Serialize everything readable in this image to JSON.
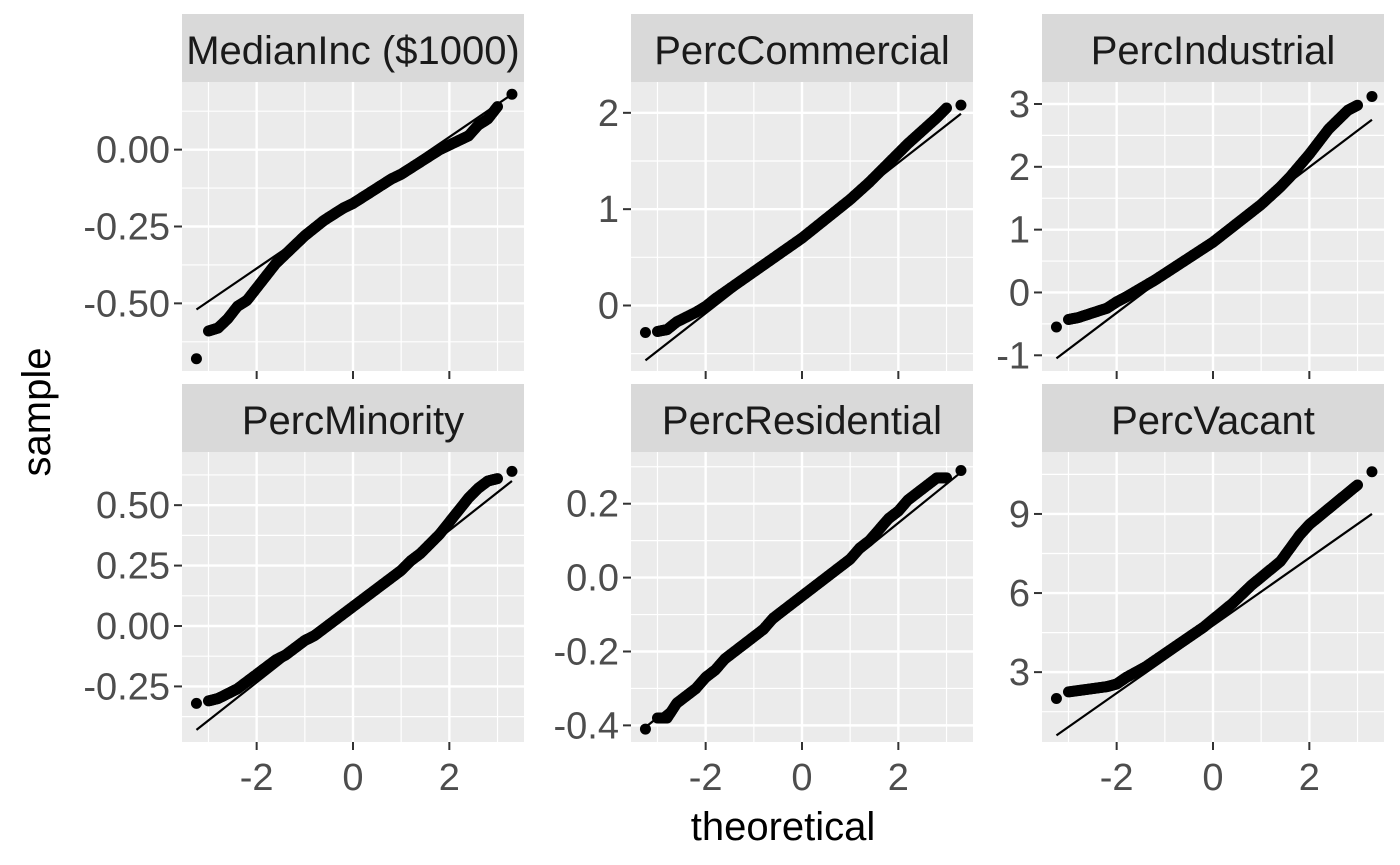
{
  "figure": {
    "xlabel": "theoretical",
    "ylabel": "sample"
  },
  "colors": {
    "panel_bg": "#ebebeb",
    "strip_bg": "#d9d9d9",
    "grid": "#ffffff",
    "points": "#000000",
    "line": "#000000",
    "tick_text": "#4d4d4d"
  },
  "chart_data": [
    {
      "type": "scatter",
      "title": "MedianInc ($1000)",
      "xlim": [
        -3.55,
        3.55
      ],
      "ylim": [
        -0.72,
        0.22
      ],
      "x_ticks": [
        -2,
        0,
        2
      ],
      "x_tick_labels": [
        "-2",
        "0",
        "2"
      ],
      "y_ticks": [
        -0.5,
        -0.25,
        0
      ],
      "y_tick_labels": [
        "-0.50",
        "-0.25",
        "0.00"
      ],
      "show_x_tick_labels": false,
      "qq_line": {
        "x": [
          -3.25,
          3.3
        ],
        "y": [
          -0.52,
          0.18
        ]
      },
      "series": [
        {
          "x": [
            -3.25,
            -3.0,
            -2.8,
            -2.6,
            -2.4,
            -2.2,
            -2.0,
            -1.8,
            -1.6,
            -1.4,
            -1.2,
            -1.0,
            -0.8,
            -0.6,
            -0.4,
            -0.2,
            0.0,
            0.2,
            0.4,
            0.6,
            0.8,
            1.0,
            1.2,
            1.4,
            1.6,
            1.8,
            2.0,
            2.2,
            2.4,
            2.6,
            2.8,
            3.0,
            3.3
          ],
          "y": [
            -0.68,
            -0.59,
            -0.58,
            -0.55,
            -0.51,
            -0.49,
            -0.45,
            -0.41,
            -0.37,
            -0.34,
            -0.31,
            -0.28,
            -0.255,
            -0.23,
            -0.21,
            -0.19,
            -0.175,
            -0.155,
            -0.135,
            -0.115,
            -0.095,
            -0.08,
            -0.06,
            -0.04,
            -0.02,
            0.0,
            0.015,
            0.03,
            0.045,
            0.08,
            0.1,
            0.14,
            0.18
          ]
        }
      ]
    },
    {
      "type": "scatter",
      "title": "PercCommercial",
      "xlim": [
        -3.55,
        3.55
      ],
      "ylim": [
        -0.68,
        2.32
      ],
      "x_ticks": [
        -2,
        0,
        2
      ],
      "x_tick_labels": [
        "-2",
        "0",
        "2"
      ],
      "y_ticks": [
        0,
        1,
        2
      ],
      "y_tick_labels": [
        "0",
        "1",
        "2"
      ],
      "show_x_tick_labels": false,
      "qq_line": {
        "x": [
          -3.25,
          3.3
        ],
        "y": [
          -0.57,
          1.99
        ]
      },
      "series": [
        {
          "x": [
            -3.25,
            -3.0,
            -2.8,
            -2.6,
            -2.4,
            -2.2,
            -2.0,
            -1.8,
            -1.6,
            -1.4,
            -1.2,
            -1.0,
            -0.8,
            -0.6,
            -0.4,
            -0.2,
            0.0,
            0.2,
            0.4,
            0.6,
            0.8,
            1.0,
            1.2,
            1.4,
            1.6,
            1.8,
            2.0,
            2.2,
            2.4,
            2.6,
            2.8,
            3.0,
            3.3
          ],
          "y": [
            -0.28,
            -0.27,
            -0.25,
            -0.17,
            -0.12,
            -0.07,
            -0.01,
            0.07,
            0.14,
            0.21,
            0.28,
            0.35,
            0.42,
            0.49,
            0.56,
            0.63,
            0.7,
            0.78,
            0.86,
            0.94,
            1.02,
            1.1,
            1.19,
            1.28,
            1.38,
            1.48,
            1.58,
            1.68,
            1.77,
            1.86,
            1.95,
            2.05,
            2.08
          ]
        }
      ]
    },
    {
      "type": "scatter",
      "title": "PercIndustrial",
      "xlim": [
        -3.55,
        3.55
      ],
      "ylim": [
        -1.25,
        3.35
      ],
      "x_ticks": [
        -2,
        0,
        2
      ],
      "x_tick_labels": [
        "-2",
        "0",
        "2"
      ],
      "y_ticks": [
        -1,
        0,
        1,
        2,
        3
      ],
      "y_tick_labels": [
        "-1",
        "0",
        "1",
        "2",
        "3"
      ],
      "show_x_tick_labels": false,
      "qq_line": {
        "x": [
          -3.25,
          3.3
        ],
        "y": [
          -1.05,
          2.75
        ]
      },
      "series": [
        {
          "x": [
            -3.25,
            -3.0,
            -2.8,
            -2.6,
            -2.4,
            -2.2,
            -2.0,
            -1.8,
            -1.6,
            -1.4,
            -1.2,
            -1.0,
            -0.8,
            -0.6,
            -0.4,
            -0.2,
            0.0,
            0.2,
            0.4,
            0.6,
            0.8,
            1.0,
            1.2,
            1.4,
            1.6,
            1.8,
            2.0,
            2.2,
            2.4,
            2.6,
            2.8,
            3.0,
            3.3
          ],
          "y": [
            -0.55,
            -0.43,
            -0.4,
            -0.35,
            -0.3,
            -0.25,
            -0.15,
            -0.07,
            0.02,
            0.11,
            0.2,
            0.3,
            0.4,
            0.5,
            0.6,
            0.7,
            0.8,
            0.92,
            1.04,
            1.16,
            1.28,
            1.4,
            1.54,
            1.68,
            1.84,
            2.02,
            2.2,
            2.4,
            2.6,
            2.75,
            2.9,
            2.98,
            3.12
          ]
        }
      ]
    },
    {
      "type": "scatter",
      "title": "PercMinority",
      "xlim": [
        -3.55,
        3.55
      ],
      "ylim": [
        -0.48,
        0.72
      ],
      "x_ticks": [
        -2,
        0,
        2
      ],
      "x_tick_labels": [
        "-2",
        "0",
        "2"
      ],
      "y_ticks": [
        -0.25,
        0,
        0.25,
        0.5
      ],
      "y_tick_labels": [
        "-0.25",
        "0.00",
        "0.25",
        "0.50"
      ],
      "show_x_tick_labels": true,
      "qq_line": {
        "x": [
          -3.25,
          3.3
        ],
        "y": [
          -0.43,
          0.6
        ]
      },
      "series": [
        {
          "x": [
            -3.25,
            -3.0,
            -2.8,
            -2.6,
            -2.4,
            -2.2,
            -2.0,
            -1.8,
            -1.6,
            -1.4,
            -1.2,
            -1.0,
            -0.8,
            -0.6,
            -0.4,
            -0.2,
            0.0,
            0.2,
            0.4,
            0.6,
            0.8,
            1.0,
            1.2,
            1.4,
            1.6,
            1.8,
            2.0,
            2.2,
            2.4,
            2.6,
            2.8,
            3.0,
            3.3
          ],
          "y": [
            -0.32,
            -0.31,
            -0.3,
            -0.28,
            -0.26,
            -0.23,
            -0.2,
            -0.17,
            -0.14,
            -0.12,
            -0.09,
            -0.06,
            -0.04,
            -0.01,
            0.02,
            0.05,
            0.08,
            0.11,
            0.14,
            0.17,
            0.2,
            0.23,
            0.27,
            0.3,
            0.34,
            0.38,
            0.43,
            0.48,
            0.53,
            0.57,
            0.6,
            0.61,
            0.64
          ]
        }
      ]
    },
    {
      "type": "scatter",
      "title": "PercResidential",
      "xlim": [
        -3.55,
        3.55
      ],
      "ylim": [
        -0.445,
        0.34
      ],
      "x_ticks": [
        -2,
        0,
        2
      ],
      "x_tick_labels": [
        "-2",
        "0",
        "2"
      ],
      "y_ticks": [
        -0.4,
        -0.2,
        0,
        0.2
      ],
      "y_tick_labels": [
        "-0.4",
        "-0.2",
        "0.0",
        "0.2"
      ],
      "show_x_tick_labels": true,
      "qq_line": {
        "x": [
          -3.25,
          3.3
        ],
        "y": [
          -0.405,
          0.285
        ]
      },
      "series": [
        {
          "x": [
            -3.25,
            -3.0,
            -2.8,
            -2.6,
            -2.4,
            -2.2,
            -2.0,
            -1.8,
            -1.6,
            -1.4,
            -1.2,
            -1.0,
            -0.8,
            -0.6,
            -0.4,
            -0.2,
            0.0,
            0.2,
            0.4,
            0.6,
            0.8,
            1.0,
            1.2,
            1.4,
            1.6,
            1.8,
            2.0,
            2.2,
            2.4,
            2.6,
            2.8,
            3.0,
            3.3
          ],
          "y": [
            -0.41,
            -0.38,
            -0.38,
            -0.34,
            -0.32,
            -0.3,
            -0.27,
            -0.25,
            -0.22,
            -0.2,
            -0.18,
            -0.16,
            -0.14,
            -0.11,
            -0.09,
            -0.07,
            -0.05,
            -0.03,
            -0.01,
            0.01,
            0.03,
            0.05,
            0.08,
            0.1,
            0.13,
            0.16,
            0.18,
            0.21,
            0.23,
            0.25,
            0.27,
            0.27,
            0.29
          ]
        }
      ]
    },
    {
      "type": "scatter",
      "title": "PercVacant",
      "xlim": [
        -3.55,
        3.55
      ],
      "ylim": [
        0.35,
        11.35
      ],
      "x_ticks": [
        -2,
        0,
        2
      ],
      "x_tick_labels": [
        "-2",
        "0",
        "2"
      ],
      "y_ticks": [
        3,
        6,
        9
      ],
      "y_tick_labels": [
        "3",
        "6",
        "9"
      ],
      "show_x_tick_labels": true,
      "qq_line": {
        "x": [
          -3.25,
          3.3
        ],
        "y": [
          0.6,
          9.0
        ]
      },
      "series": [
        {
          "x": [
            -3.25,
            -3.0,
            -2.8,
            -2.6,
            -2.4,
            -2.2,
            -2.0,
            -1.8,
            -1.6,
            -1.4,
            -1.2,
            -1.0,
            -0.8,
            -0.6,
            -0.4,
            -0.2,
            0.0,
            0.2,
            0.4,
            0.6,
            0.8,
            1.0,
            1.2,
            1.4,
            1.6,
            1.8,
            2.0,
            2.2,
            2.4,
            2.6,
            2.8,
            3.0,
            3.3
          ],
          "y": [
            2.0,
            2.25,
            2.3,
            2.35,
            2.4,
            2.45,
            2.55,
            2.8,
            3.0,
            3.2,
            3.45,
            3.7,
            3.95,
            4.2,
            4.45,
            4.7,
            5.0,
            5.3,
            5.6,
            5.95,
            6.3,
            6.6,
            6.9,
            7.2,
            7.7,
            8.2,
            8.6,
            8.9,
            9.2,
            9.5,
            9.8,
            10.1,
            10.6
          ]
        }
      ]
    }
  ]
}
